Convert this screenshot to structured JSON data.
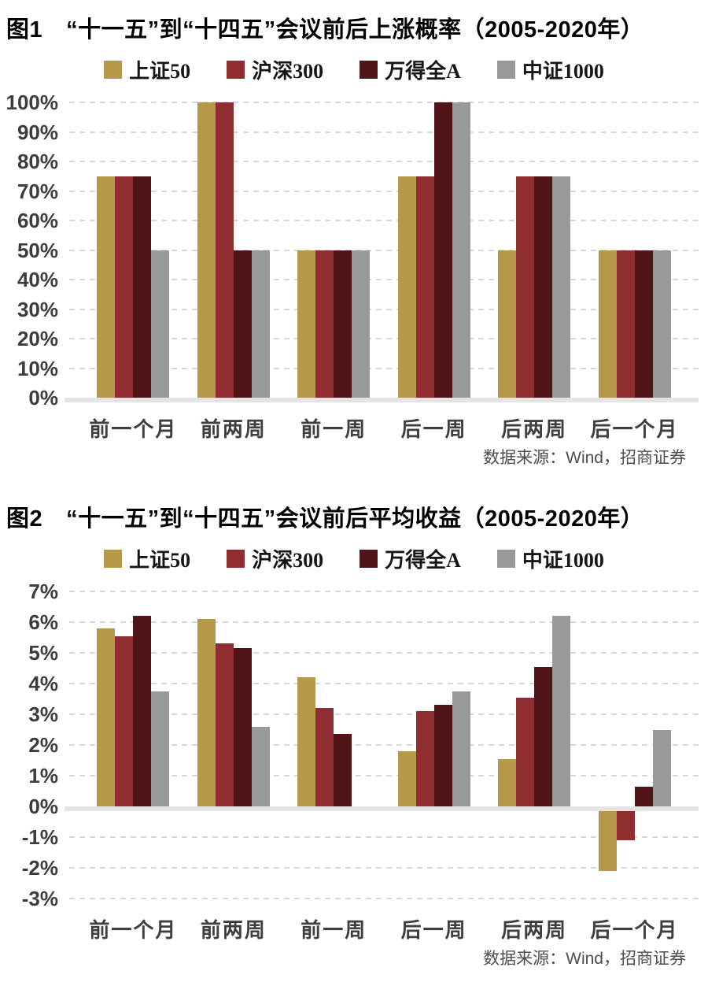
{
  "colors": {
    "gridline": "#D8D8D8",
    "zero_axis_band": "#E4E4E4",
    "title_text": "#000000",
    "y_tick_text": "#3C3C3C",
    "x_tick_text": "#3F3F3F",
    "source_text": "#4D4D4D"
  },
  "chart_data": [
    {
      "type": "bar",
      "figure_label": "图1",
      "title": "“十一五”到“十四五”会议前后上涨概率（2005-2020年）",
      "source": "数据来源：Wind，招商证券",
      "legend_position": "top-center",
      "grid": "horizontal-dashed",
      "categories": [
        "前一个月",
        "前两周",
        "前一周",
        "后一周",
        "后两周",
        "后一个月"
      ],
      "series": [
        {
          "name": "上证50",
          "color": "#B5984A",
          "values": [
            75,
            100,
            50,
            75,
            50,
            50
          ]
        },
        {
          "name": "沪深300",
          "color": "#8F2D30",
          "values": [
            75,
            100,
            50,
            75,
            75,
            50
          ]
        },
        {
          "name": "万得全A",
          "color": "#511517",
          "values": [
            75,
            50,
            50,
            100,
            75,
            50
          ]
        },
        {
          "name": "中证1000",
          "color": "#98999B",
          "values": [
            50,
            50,
            50,
            100,
            75,
            50
          ]
        }
      ],
      "ylim": [
        0,
        100
      ],
      "ytick_step": 10,
      "ytick_suffix": "%",
      "yticks": [
        "100%",
        "90%",
        "80%",
        "70%",
        "60%",
        "50%",
        "40%",
        "30%",
        "20%",
        "10%",
        "0%"
      ]
    },
    {
      "type": "bar",
      "figure_label": "图2",
      "title": "“十一五”到“十四五”会议前后平均收益（2005-2020年）",
      "source": "数据来源：Wind，招商证券",
      "legend_position": "top-center",
      "grid": "horizontal-dashed",
      "categories": [
        "前一个月",
        "前两周",
        "前一周",
        "后一周",
        "后两周",
        "后一个月"
      ],
      "series": [
        {
          "name": "上证50",
          "color": "#B5984A",
          "values": [
            5.8,
            6.1,
            4.2,
            1.8,
            1.55,
            -2.1
          ]
        },
        {
          "name": "沪深300",
          "color": "#8F2D30",
          "values": [
            5.55,
            5.3,
            3.2,
            3.1,
            3.55,
            -1.1
          ]
        },
        {
          "name": "万得全A",
          "color": "#511517",
          "values": [
            6.2,
            5.15,
            2.35,
            3.3,
            4.55,
            0.65
          ]
        },
        {
          "name": "中证1000",
          "color": "#98999B",
          "values": [
            3.75,
            2.6,
            0,
            3.75,
            6.2,
            2.5
          ]
        }
      ],
      "ylim": [
        -3,
        7
      ],
      "ytick_step": 1,
      "ytick_suffix": "%",
      "yticks": [
        "7%",
        "6%",
        "5%",
        "4%",
        "3%",
        "2%",
        "1%",
        "0%",
        "-1%",
        "-2%",
        "-3%"
      ]
    }
  ]
}
